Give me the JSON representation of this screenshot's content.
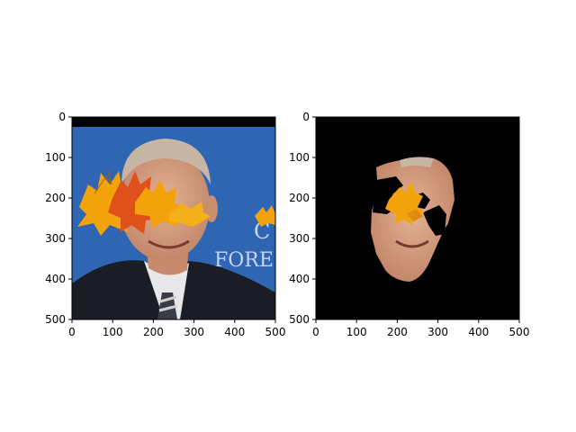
{
  "chart_data": [
    {
      "type": "image",
      "panel": "left",
      "content": "photo",
      "xlim": [
        0,
        500
      ],
      "ylim": [
        500,
        0
      ],
      "xticks": [
        0,
        100,
        200,
        300,
        400,
        500
      ],
      "yticks": [
        0,
        100,
        200,
        300,
        400,
        500
      ],
      "xtick_labels": [
        "0",
        "100",
        "200",
        "300",
        "400",
        "500"
      ],
      "ytick_labels": [
        "0",
        "100",
        "200",
        "300",
        "400",
        "500"
      ],
      "title": "",
      "xlabel": "",
      "ylabel": "",
      "colors": {
        "background": "#2f66b4",
        "top_band": "#000000",
        "suit": "#1b1d26",
        "skin": "#d8a184",
        "hair": "#c6b6a3",
        "leaf_orange": "#f2a30c",
        "leaf_red": "#e0501a"
      },
      "overlay_text": [
        "C",
        "FORE"
      ]
    },
    {
      "type": "image",
      "panel": "right",
      "content": "masked-face",
      "xlim": [
        0,
        500
      ],
      "ylim": [
        500,
        0
      ],
      "xticks": [
        0,
        100,
        200,
        300,
        400,
        500
      ],
      "yticks": [
        0,
        100,
        200,
        300,
        400,
        500
      ],
      "xtick_labels": [
        "0",
        "100",
        "200",
        "300",
        "400",
        "500"
      ],
      "ytick_labels": [
        "0",
        "100",
        "200",
        "300",
        "400",
        "500"
      ],
      "title": "",
      "xlabel": "",
      "ylabel": "",
      "colors": {
        "background": "#000000",
        "skin": "#d8a184",
        "leaf_orange": "#f2a30c"
      }
    }
  ]
}
